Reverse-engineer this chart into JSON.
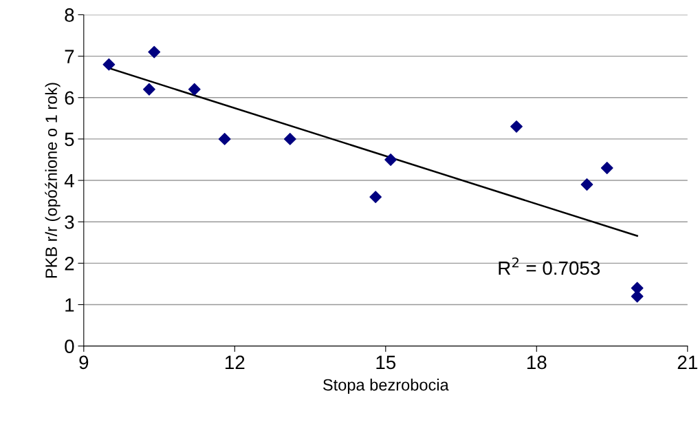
{
  "chart_data": {
    "type": "scatter",
    "xlabel": "Stopa bezrobocia",
    "ylabel": "PKB r/r (opóźnione o 1 rok)",
    "xlim": [
      9,
      21
    ],
    "xticks": [
      9,
      12,
      15,
      18,
      21
    ],
    "ylim": [
      0,
      8
    ],
    "yticks": [
      0,
      1,
      2,
      3,
      4,
      5,
      6,
      7,
      8
    ],
    "grid": "y",
    "series": [
      {
        "marker": "diamond",
        "color": "#000080",
        "x": [
          9.5,
          10.4,
          10.3,
          11.2,
          11.8,
          13.1,
          14.8,
          15.1,
          17.6,
          19.0,
          19.4,
          20.0,
          20.0
        ],
        "values": [
          6.8,
          7.1,
          6.2,
          6.2,
          5.0,
          5.0,
          3.6,
          4.5,
          5.3,
          3.9,
          4.3,
          1.4,
          1.2
        ]
      },
      {
        "type": "line",
        "color": "#000000",
        "x": [
          9.5,
          20.0
        ],
        "values": [
          6.71,
          2.66
        ]
      }
    ],
    "annotations": [
      "R$^{2}$ = 0.7053"
    ]
  }
}
